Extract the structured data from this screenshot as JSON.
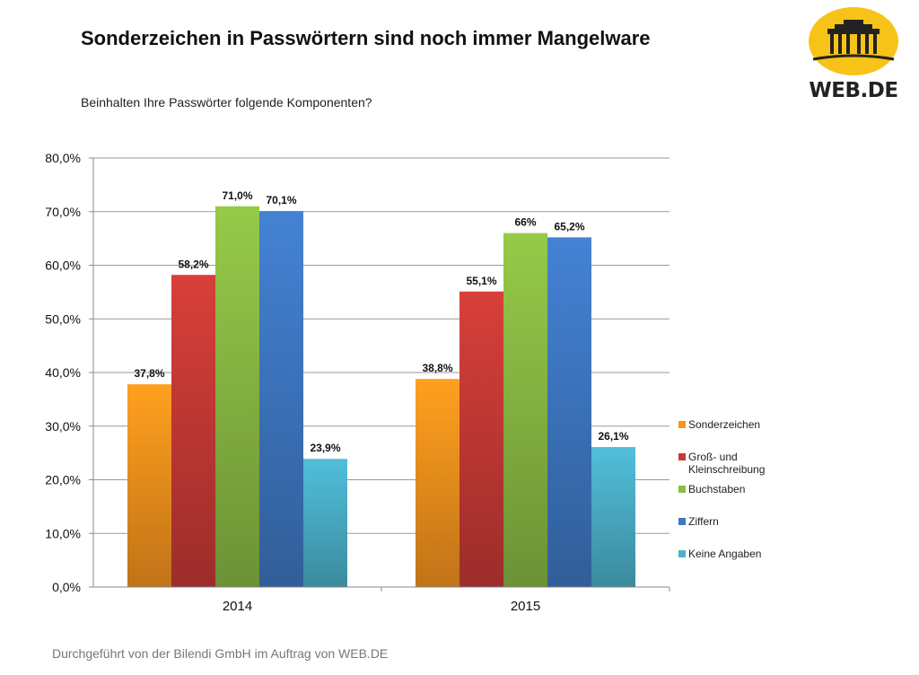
{
  "header": {
    "title": "Sonderzeichen in Passwörtern sind noch immer Mangelware",
    "subtitle": "Beinhalten Ihre Passwörter folgende Komponenten?"
  },
  "logo": {
    "text": "WEB.DE",
    "bg_color": "#f7c318",
    "icon": "brandenburg-gate-icon"
  },
  "footer": {
    "source": "Durchgeführt von der Bilendi GmbH im Auftrag von WEB.DE"
  },
  "chart_data": {
    "type": "bar",
    "categories": [
      "2014",
      "2015"
    ],
    "ylim": [
      0,
      80
    ],
    "ytick_step": 10,
    "ytick_labels": [
      "0,0%",
      "10,0%",
      "20,0%",
      "30,0%",
      "40,0%",
      "50,0%",
      "60,0%",
      "70,0%",
      "80,0%"
    ],
    "grid": true,
    "legend_position": "right",
    "series": [
      {
        "name": "Sonderzeichen",
        "color": "#f7941d",
        "values": [
          37.8,
          38.8
        ],
        "labels": [
          "37,8%",
          "38,8%"
        ]
      },
      {
        "name": "Groß- und Kleinschreibung",
        "color": "#c83a36",
        "values": [
          58.2,
          55.1
        ],
        "labels": [
          "58,2%",
          "55,1%"
        ]
      },
      {
        "name": "Buchstaben",
        "color": "#8bbb44",
        "values": [
          71.0,
          66.0
        ],
        "labels": [
          "71,0%",
          "66%"
        ]
      },
      {
        "name": "Ziffern",
        "color": "#3f78c4",
        "values": [
          70.1,
          65.2
        ],
        "labels": [
          "70,1%",
          "65,2%"
        ]
      },
      {
        "name": "Keine Angaben",
        "color": "#4bb1cb",
        "values": [
          23.9,
          26.1
        ],
        "labels": [
          "23,9%",
          "26,1%"
        ]
      }
    ]
  }
}
